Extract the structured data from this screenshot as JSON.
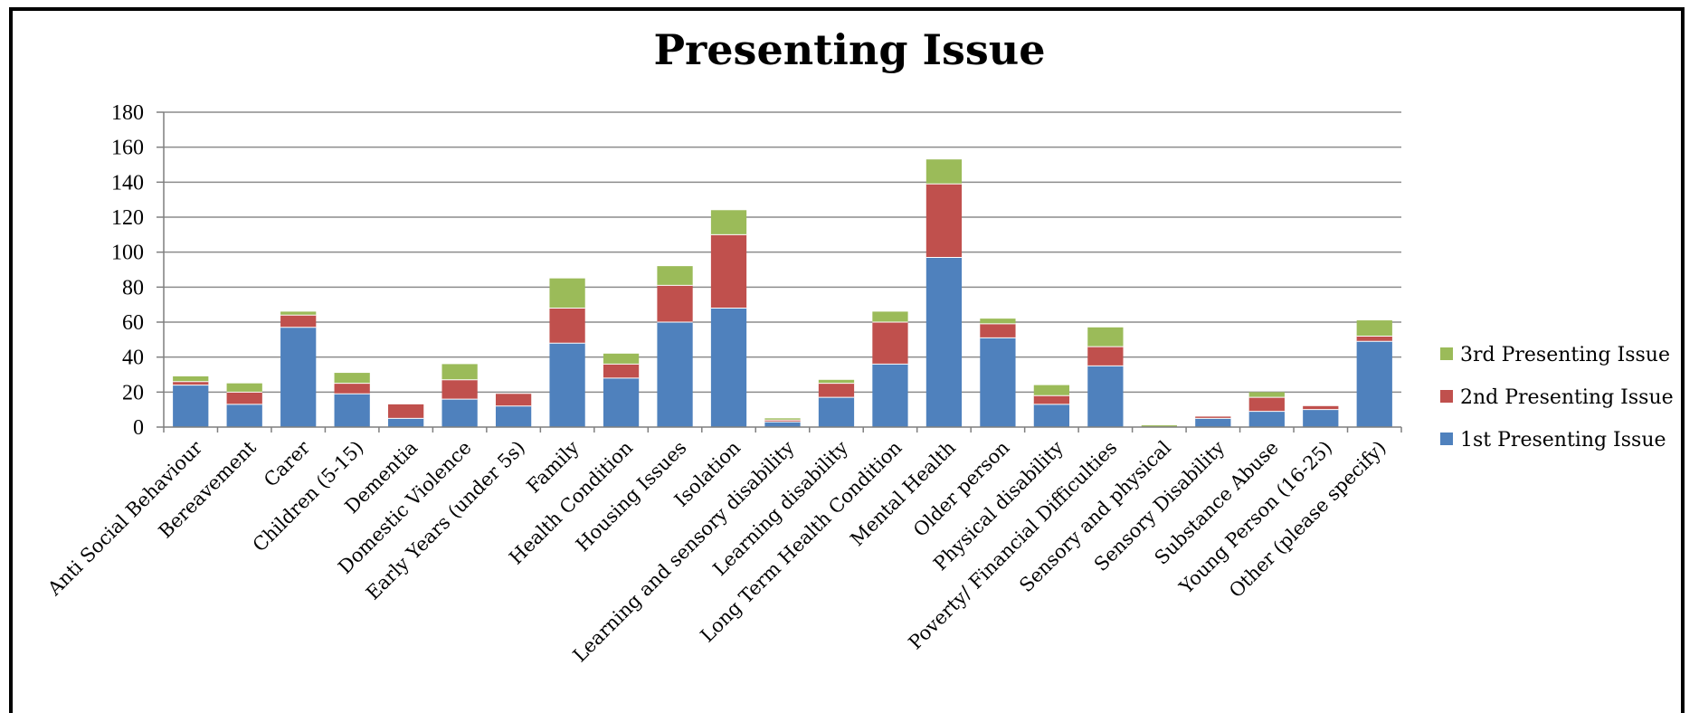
{
  "chart_data": {
    "type": "bar",
    "stacked": true,
    "title": "Presenting Issue",
    "xlabel": "",
    "ylabel": "",
    "ylim": [
      0,
      180
    ],
    "yticks": [
      0,
      20,
      40,
      60,
      80,
      100,
      120,
      140,
      160,
      180
    ],
    "grid": true,
    "legend_position": "right",
    "categories": [
      "Anti Social Behaviour",
      "Bereavement",
      "Carer",
      "Children (5-15)",
      "Dementia",
      "Domestic Violence",
      "Early Years (under 5s)",
      "Family",
      "Health Condition",
      "Housing Issues",
      "Isolation",
      "Learning and sensory disability",
      "Learning disability",
      "Long Term Health Condition",
      "Mental Health",
      "Older person",
      "Physical disability",
      "Poverty/ Financial Difficulties",
      "Sensory and physical",
      "Sensory Disability",
      "Substance Abuse",
      "Young Person (16-25)",
      "Other (please specify)"
    ],
    "series": [
      {
        "name": "1st Presenting Issue",
        "color": "#4f81bd",
        "values": [
          24,
          13,
          57,
          19,
          5,
          16,
          12,
          48,
          28,
          60,
          68,
          3,
          17,
          36,
          97,
          51,
          13,
          35,
          0,
          5,
          9,
          10,
          49
        ]
      },
      {
        "name": "2nd Presenting Issue",
        "color": "#c0504d",
        "values": [
          2,
          7,
          7,
          6,
          8,
          11,
          7,
          20,
          8,
          21,
          42,
          1,
          8,
          24,
          42,
          8,
          5,
          11,
          0,
          1,
          8,
          2,
          3
        ]
      },
      {
        "name": "3rd Presenting Issue",
        "color": "#9bbb59",
        "values": [
          3,
          5,
          2,
          6,
          0,
          9,
          0,
          17,
          6,
          11,
          14,
          1,
          2,
          6,
          14,
          3,
          6,
          11,
          1,
          0,
          3,
          0,
          9
        ]
      }
    ],
    "legend_order": [
      "3rd Presenting Issue",
      "2nd Presenting Issue",
      "1st Presenting Issue"
    ]
  }
}
